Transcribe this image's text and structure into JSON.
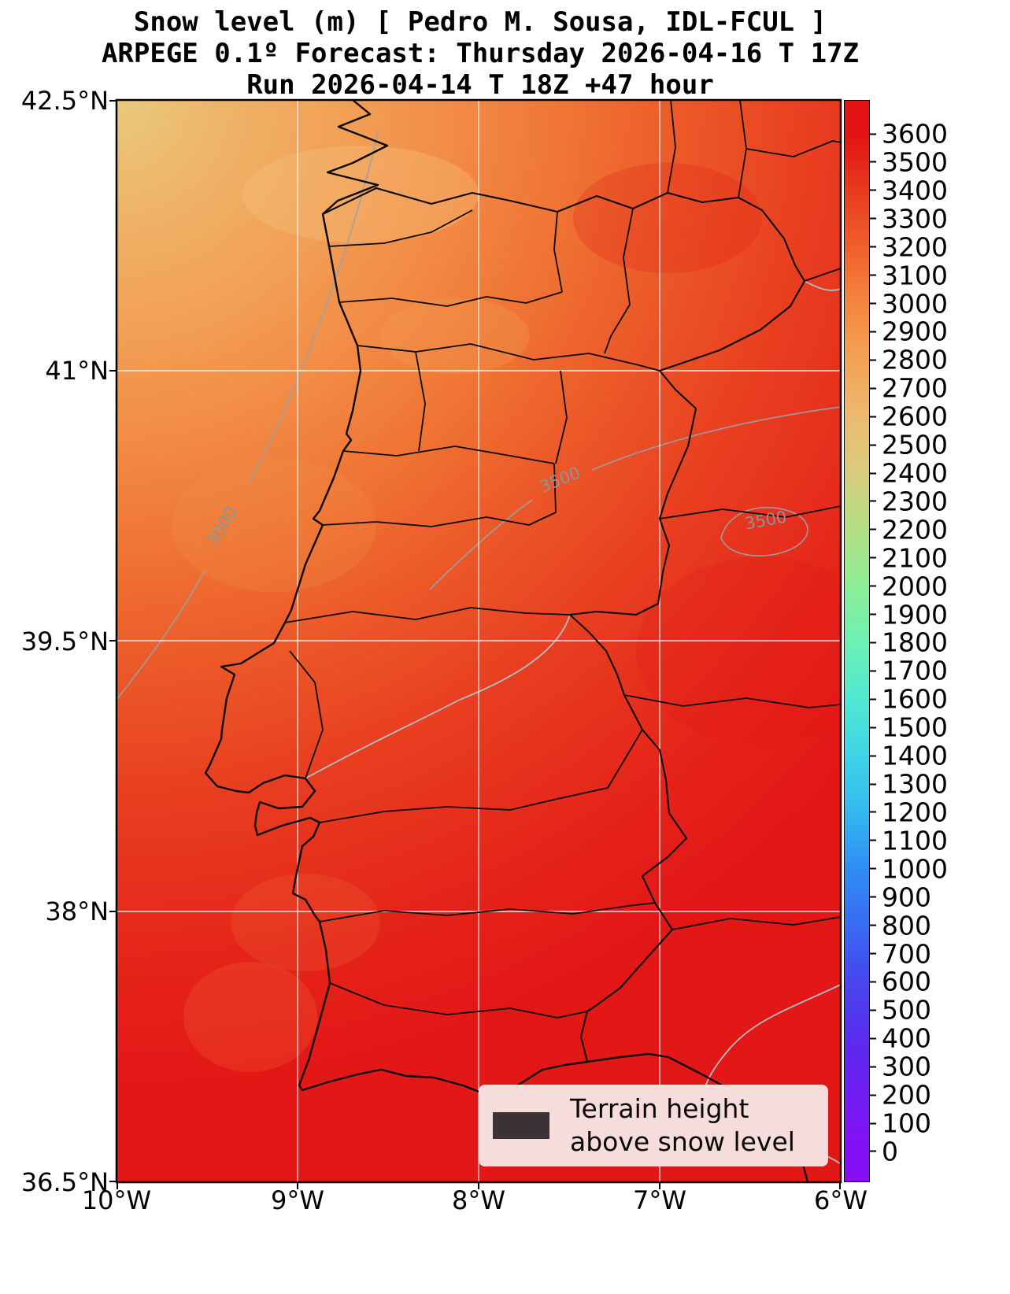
{
  "title": {
    "line1": "Snow level (m) [ Pedro M. Sousa, IDL-FCUL ]",
    "line2": "ARPEGE 0.1º Forecast: Thursday 2026-04-16 T 17Z",
    "line3": "Run 2026-04-14 T 18Z +47 hour"
  },
  "axes": {
    "lat_labels": [
      "42.5°N",
      "41°N",
      "39.5°N",
      "38°N",
      "36.5°N"
    ],
    "lon_labels": [
      "10°W",
      "9°W",
      "8°W",
      "7°W",
      "6°W"
    ]
  },
  "contour_labels": [
    "3000",
    "3500",
    "3500"
  ],
  "colorbar": {
    "tick_values": [
      3600,
      3500,
      3400,
      3300,
      3200,
      3100,
      3000,
      2900,
      2800,
      2700,
      2600,
      2500,
      2400,
      2300,
      2200,
      2100,
      2000,
      1900,
      1800,
      1700,
      1600,
      1500,
      1400,
      1300,
      1200,
      1100,
      1000,
      900,
      800,
      700,
      600,
      500,
      400,
      300,
      200,
      100,
      0
    ],
    "stops": [
      {
        "v": 3600,
        "color": "#e31313"
      },
      {
        "v": 3400,
        "color": "#e83a1e"
      },
      {
        "v": 3200,
        "color": "#f0602c"
      },
      {
        "v": 3000,
        "color": "#f4863e"
      },
      {
        "v": 2800,
        "color": "#f4a254"
      },
      {
        "v": 2600,
        "color": "#ecba70"
      },
      {
        "v": 2400,
        "color": "#d8cc7c"
      },
      {
        "v": 2200,
        "color": "#b4e084"
      },
      {
        "v": 2000,
        "color": "#8cee96"
      },
      {
        "v": 1800,
        "color": "#6cf0b4"
      },
      {
        "v": 1600,
        "color": "#50e8d2"
      },
      {
        "v": 1400,
        "color": "#3ed4e6"
      },
      {
        "v": 1200,
        "color": "#34b8f0"
      },
      {
        "v": 1000,
        "color": "#2f8df4"
      },
      {
        "v": 800,
        "color": "#386af2"
      },
      {
        "v": 600,
        "color": "#4746ee"
      },
      {
        "v": 400,
        "color": "#5a2cee"
      },
      {
        "v": 200,
        "color": "#701df2"
      },
      {
        "v": 0,
        "color": "#8510f6"
      }
    ]
  },
  "legend": {
    "line1": "Terrain height",
    "line2": "above snow level",
    "bg_color": "#f7dcdc",
    "swatch_color": "#3a3234"
  },
  "map_fill": {
    "stops": [
      {
        "color": "#e9c97e"
      },
      {
        "color": "#eeb66a"
      },
      {
        "color": "#f2a258"
      },
      {
        "color": "#f28c46"
      },
      {
        "color": "#f07434"
      },
      {
        "color": "#ec5828"
      },
      {
        "color": "#e83c20"
      },
      {
        "color": "#e52419"
      },
      {
        "color": "#e41717"
      }
    ]
  }
}
